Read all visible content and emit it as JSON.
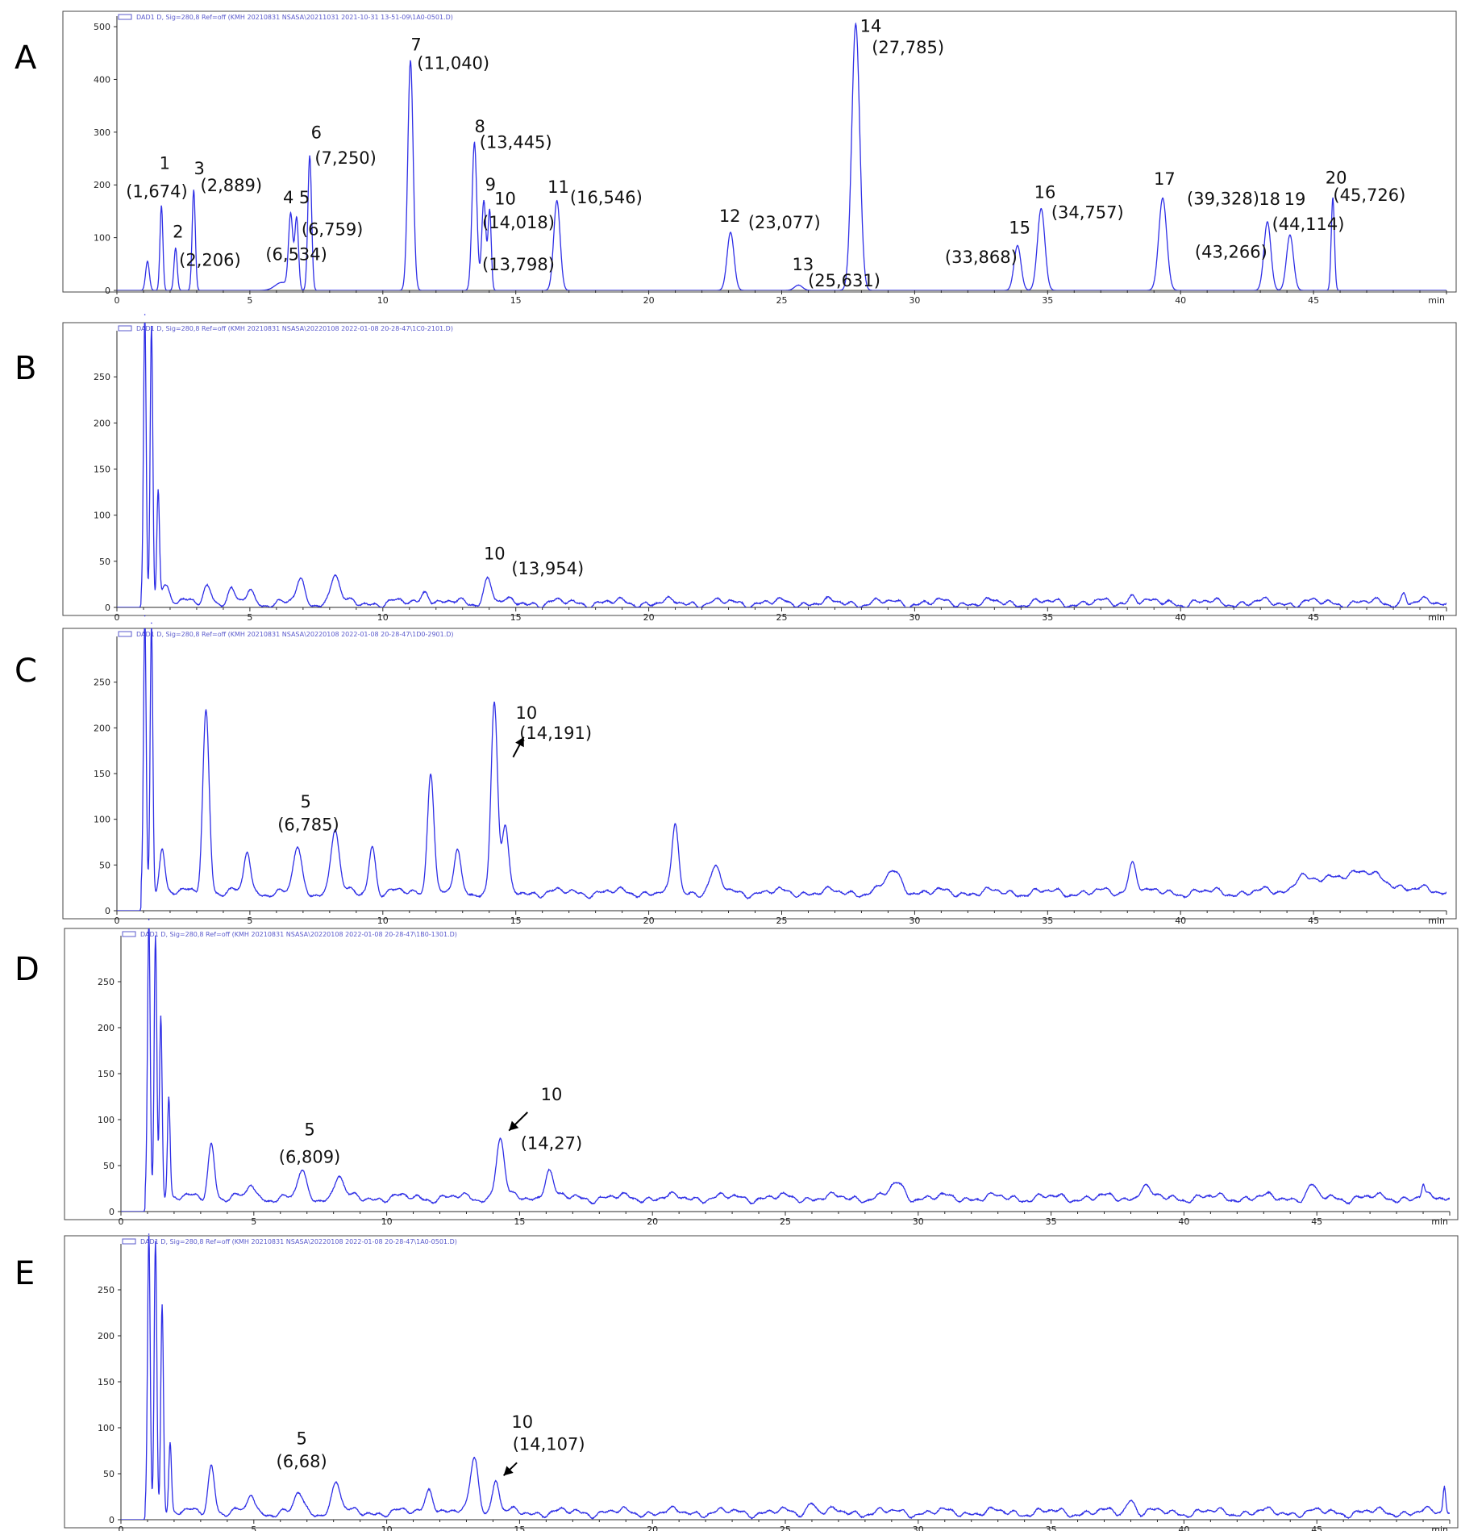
{
  "chart_data": [
    {
      "type": "line",
      "panel_label": "A",
      "header": "DAD1 D, Sig=280,8 Ref=off (KMH 20210831 NSASA\\20211031 2021-10-31 13-51-09\\1A0-0501.D)",
      "x_unit": "min",
      "xlim": [
        0,
        50
      ],
      "xticks": [
        0,
        5,
        10,
        15,
        20,
        25,
        30,
        35,
        40,
        45
      ],
      "ylim": [
        0,
        520
      ],
      "yticks": [
        0,
        100,
        200,
        300,
        400,
        500
      ],
      "baseline": 0,
      "peaks": [
        {
          "x": 1.15,
          "h": 55,
          "w": 0.07
        },
        {
          "x": 1.674,
          "h": 160,
          "w": 0.055
        },
        {
          "x": 2.206,
          "h": 80,
          "w": 0.06
        },
        {
          "x": 2.889,
          "h": 190,
          "w": 0.06
        },
        {
          "x": 6.2,
          "h": 15,
          "w": 0.25
        },
        {
          "x": 6.534,
          "h": 140,
          "w": 0.08
        },
        {
          "x": 6.759,
          "h": 135,
          "w": 0.07
        },
        {
          "x": 7.25,
          "h": 255,
          "w": 0.07
        },
        {
          "x": 11.04,
          "h": 435,
          "w": 0.1
        },
        {
          "x": 13.445,
          "h": 280,
          "w": 0.09
        },
        {
          "x": 13.798,
          "h": 170,
          "w": 0.08
        },
        {
          "x": 14.018,
          "h": 150,
          "w": 0.06
        },
        {
          "x": 16.546,
          "h": 170,
          "w": 0.12
        },
        {
          "x": 23.077,
          "h": 110,
          "w": 0.13
        },
        {
          "x": 25.631,
          "h": 10,
          "w": 0.15
        },
        {
          "x": 27.785,
          "h": 505,
          "w": 0.15
        },
        {
          "x": 33.868,
          "h": 85,
          "w": 0.13
        },
        {
          "x": 34.757,
          "h": 155,
          "w": 0.14
        },
        {
          "x": 39.328,
          "h": 175,
          "w": 0.15
        },
        {
          "x": 43.266,
          "h": 130,
          "w": 0.13
        },
        {
          "x": 44.114,
          "h": 105,
          "w": 0.13
        },
        {
          "x": 45.726,
          "h": 175,
          "w": 0.06
        }
      ],
      "annotations": [
        {
          "text": "1",
          "x": 1.8,
          "y": 230
        },
        {
          "text": "(1,674)",
          "x": 1.5,
          "y": 177
        },
        {
          "text": "2",
          "x": 2.3,
          "y": 100
        },
        {
          "text": "(2,206)",
          "x": 3.5,
          "y": 47
        },
        {
          "text": "3",
          "x": 3.1,
          "y": 220
        },
        {
          "text": "(2,889)",
          "x": 4.3,
          "y": 188
        },
        {
          "text": "4",
          "x": 6.45,
          "y": 165
        },
        {
          "text": "5",
          "x": 7.05,
          "y": 165
        },
        {
          "text": "(6,759)",
          "x": 8.1,
          "y": 105
        },
        {
          "text": "(6,534)",
          "x": 6.75,
          "y": 57
        },
        {
          "text": "6",
          "x": 7.5,
          "y": 288
        },
        {
          "text": "(7,250)",
          "x": 8.6,
          "y": 240
        },
        {
          "text": "7",
          "x": 11.25,
          "y": 455
        },
        {
          "text": "(11,040)",
          "x": 12.65,
          "y": 420
        },
        {
          "text": "8",
          "x": 13.65,
          "y": 300
        },
        {
          "text": "(13,445)",
          "x": 15.0,
          "y": 270
        },
        {
          "text": "9",
          "x": 14.05,
          "y": 190
        },
        {
          "text": "10",
          "x": 14.6,
          "y": 163
        },
        {
          "text": "(14,018)",
          "x": 15.1,
          "y": 118
        },
        {
          "text": "(13,798)",
          "x": 15.1,
          "y": 38
        },
        {
          "text": "11",
          "x": 16.6,
          "y": 185
        },
        {
          "text": "(16,546)",
          "x": 18.4,
          "y": 165
        },
        {
          "text": "12",
          "x": 23.05,
          "y": 130
        },
        {
          "text": "(23,077)",
          "x": 25.1,
          "y": 118
        },
        {
          "text": "13",
          "x": 25.8,
          "y": 38
        },
        {
          "text": "(25,631)",
          "x": 27.35,
          "y": 8
        },
        {
          "text": "14",
          "x": 28.35,
          "y": 490
        },
        {
          "text": "(27,785)",
          "x": 29.75,
          "y": 450
        },
        {
          "text": "15",
          "x": 33.95,
          "y": 108
        },
        {
          "text": "(33,868)",
          "x": 32.5,
          "y": 52
        },
        {
          "text": "16",
          "x": 34.9,
          "y": 175
        },
        {
          "text": "(34,757)",
          "x": 36.5,
          "y": 137
        },
        {
          "text": "17",
          "x": 39.4,
          "y": 200
        },
        {
          "text": "(39,328)",
          "x": 41.6,
          "y": 163
        },
        {
          "text": "18",
          "x": 43.35,
          "y": 162
        },
        {
          "text": "19",
          "x": 44.3,
          "y": 162
        },
        {
          "text": "(44,114)",
          "x": 44.8,
          "y": 115
        },
        {
          "text": "(43,266)",
          "x": 41.9,
          "y": 62
        },
        {
          "text": "20",
          "x": 45.85,
          "y": 203
        },
        {
          "text": "(45,726)",
          "x": 47.1,
          "y": 170
        }
      ],
      "arrows": []
    },
    {
      "type": "line",
      "panel_label": "B",
      "header": "DAD1 D, Sig=280,8 Ref=off (KMH 20210831 NSASA\\20220108 2022-01-08 20-28-47\\1C0-2101.D)",
      "x_unit": "min",
      "xlim": [
        0,
        50
      ],
      "xticks": [
        0,
        5,
        10,
        15,
        20,
        25,
        30,
        35,
        40,
        45
      ],
      "ylim": [
        0,
        300
      ],
      "yticks": [
        0,
        50,
        100,
        150,
        200,
        250
      ],
      "baseline": 5,
      "peaks": [
        {
          "x": 1.05,
          "h": 310,
          "w": 0.05
        },
        {
          "x": 1.3,
          "h": 305,
          "w": 0.05
        },
        {
          "x": 1.55,
          "h": 120,
          "w": 0.05
        },
        {
          "x": 1.8,
          "h": 20,
          "w": 0.15
        },
        {
          "x": 3.4,
          "h": 20,
          "w": 0.15
        },
        {
          "x": 4.3,
          "h": 12,
          "w": 0.12
        },
        {
          "x": 5.0,
          "h": 15,
          "w": 0.12
        },
        {
          "x": 6.9,
          "h": 23,
          "w": 0.15
        },
        {
          "x": 8.2,
          "h": 32,
          "w": 0.15
        },
        {
          "x": 11.6,
          "h": 15,
          "w": 0.15
        },
        {
          "x": 13.954,
          "h": 27,
          "w": 0.15
        },
        {
          "x": 38.2,
          "h": 10,
          "w": 0.15
        },
        {
          "x": 48.4,
          "h": 12,
          "w": 0.08
        }
      ],
      "annotations": [
        {
          "text": "10",
          "x": 14.2,
          "y": 52
        },
        {
          "text": "(13,954)",
          "x": 16.2,
          "y": 36
        }
      ],
      "arrows": []
    },
    {
      "type": "line",
      "panel_label": "C",
      "header": "DAD1 D, Sig=280,8 Ref=off (KMH 20210831 NSASA\\20220108 2022-01-08 20-28-47\\1D0-2901.D)",
      "x_unit": "min",
      "xlim": [
        0,
        50
      ],
      "xticks": [
        0,
        5,
        10,
        15,
        20,
        25,
        30,
        35,
        40,
        45
      ],
      "ylim": [
        0,
        300
      ],
      "yticks": [
        0,
        50,
        100,
        150,
        200,
        250
      ],
      "baseline": 20,
      "peaks": [
        {
          "x": 1.05,
          "h": 300,
          "w": 0.05
        },
        {
          "x": 1.3,
          "h": 300,
          "w": 0.05
        },
        {
          "x": 1.7,
          "h": 50,
          "w": 0.1
        },
        {
          "x": 3.35,
          "h": 200,
          "w": 0.12
        },
        {
          "x": 4.9,
          "h": 45,
          "w": 0.12
        },
        {
          "x": 6.785,
          "h": 48,
          "w": 0.15
        },
        {
          "x": 8.2,
          "h": 70,
          "w": 0.15
        },
        {
          "x": 9.6,
          "h": 52,
          "w": 0.12
        },
        {
          "x": 11.8,
          "h": 135,
          "w": 0.12
        },
        {
          "x": 12.8,
          "h": 45,
          "w": 0.12
        },
        {
          "x": 14.191,
          "h": 210,
          "w": 0.12
        },
        {
          "x": 14.6,
          "h": 70,
          "w": 0.12
        },
        {
          "x": 21.0,
          "h": 75,
          "w": 0.12
        },
        {
          "x": 22.5,
          "h": 25,
          "w": 0.2
        },
        {
          "x": 29.2,
          "h": 22,
          "w": 0.3
        },
        {
          "x": 38.2,
          "h": 35,
          "w": 0.15
        },
        {
          "x": 44.5,
          "h": 15,
          "w": 0.2
        },
        {
          "x": 46.5,
          "h": 22,
          "w": 1.2
        }
      ],
      "annotations": [
        {
          "text": "10",
          "x": 15.4,
          "y": 210
        },
        {
          "text": "(14,191)",
          "x": 16.5,
          "y": 188
        },
        {
          "text": "5",
          "x": 7.1,
          "y": 113
        },
        {
          "text": "(6,785)",
          "x": 7.2,
          "y": 88
        }
      ],
      "arrows": [
        {
          "x1": 14.9,
          "y1": 168,
          "x2": 15.3,
          "y2": 190
        }
      ]
    },
    {
      "type": "line",
      "panel_label": "D",
      "header": "DAD1 D, Sig=280,8 Ref=off (KMH 20210831 NSASA\\20220108 2022-01-08 20-28-47\\1B0-1301.D)",
      "x_unit": "min",
      "xlim": [
        0,
        50
      ],
      "xticks": [
        0,
        5,
        10,
        15,
        20,
        25,
        30,
        35,
        40,
        45
      ],
      "ylim": [
        0,
        300
      ],
      "yticks": [
        0,
        50,
        100,
        150,
        200,
        250
      ],
      "baseline": 15,
      "peaks": [
        {
          "x": 1.05,
          "h": 300,
          "w": 0.05
        },
        {
          "x": 1.3,
          "h": 290,
          "w": 0.05
        },
        {
          "x": 1.5,
          "h": 200,
          "w": 0.05
        },
        {
          "x": 1.8,
          "h": 110,
          "w": 0.05
        },
        {
          "x": 3.4,
          "h": 60,
          "w": 0.12
        },
        {
          "x": 4.9,
          "h": 15,
          "w": 0.12
        },
        {
          "x": 6.809,
          "h": 28,
          "w": 0.15
        },
        {
          "x": 8.2,
          "h": 25,
          "w": 0.15
        },
        {
          "x": 14.27,
          "h": 65,
          "w": 0.15
        },
        {
          "x": 16.1,
          "h": 32,
          "w": 0.15
        },
        {
          "x": 29.2,
          "h": 15,
          "w": 0.25
        },
        {
          "x": 38.5,
          "h": 15,
          "w": 0.15
        },
        {
          "x": 44.8,
          "h": 12,
          "w": 0.15
        },
        {
          "x": 49.0,
          "h": 12,
          "w": 0.05
        }
      ],
      "annotations": [
        {
          "text": "10",
          "x": 16.2,
          "y": 121
        },
        {
          "text": "(14,27)",
          "x": 16.2,
          "y": 68
        },
        {
          "text": "5",
          "x": 7.1,
          "y": 83
        },
        {
          "text": "(6,809)",
          "x": 7.1,
          "y": 53
        }
      ],
      "arrows": [
        {
          "x1": 15.3,
          "y1": 108,
          "x2": 14.6,
          "y2": 88
        }
      ]
    },
    {
      "type": "line",
      "panel_label": "E",
      "header": "DAD1 D, Sig=280,8 Ref=off (KMH 20210831 NSASA\\20220108 2022-01-08 20-28-47\\1A0-0501.D)",
      "x_unit": "min",
      "xlim": [
        0,
        50
      ],
      "xticks": [
        0,
        5,
        10,
        15,
        20,
        25,
        30,
        35,
        40,
        45
      ],
      "ylim": [
        0,
        300
      ],
      "yticks": [
        0,
        50,
        100,
        150,
        200,
        250
      ],
      "baseline": 8,
      "peaks": [
        {
          "x": 1.05,
          "h": 300,
          "w": 0.05
        },
        {
          "x": 1.3,
          "h": 300,
          "w": 0.05
        },
        {
          "x": 1.55,
          "h": 228,
          "w": 0.05
        },
        {
          "x": 1.85,
          "h": 75,
          "w": 0.05
        },
        {
          "x": 3.4,
          "h": 52,
          "w": 0.12
        },
        {
          "x": 4.9,
          "h": 20,
          "w": 0.12
        },
        {
          "x": 6.68,
          "h": 20,
          "w": 0.15
        },
        {
          "x": 8.1,
          "h": 35,
          "w": 0.15
        },
        {
          "x": 11.6,
          "h": 28,
          "w": 0.15
        },
        {
          "x": 13.3,
          "h": 62,
          "w": 0.15
        },
        {
          "x": 14.107,
          "h": 37,
          "w": 0.12
        },
        {
          "x": 26.0,
          "h": 12,
          "w": 0.15
        },
        {
          "x": 38.0,
          "h": 15,
          "w": 0.15
        },
        {
          "x": 49.8,
          "h": 30,
          "w": 0.05
        }
      ],
      "annotations": [
        {
          "text": "10",
          "x": 15.1,
          "y": 100
        },
        {
          "text": "(14,107)",
          "x": 16.1,
          "y": 76
        },
        {
          "text": "5",
          "x": 6.8,
          "y": 82
        },
        {
          "text": "(6,68)",
          "x": 6.8,
          "y": 57
        }
      ],
      "arrows": [
        {
          "x1": 14.9,
          "y1": 62,
          "x2": 14.4,
          "y2": 48
        }
      ]
    }
  ]
}
